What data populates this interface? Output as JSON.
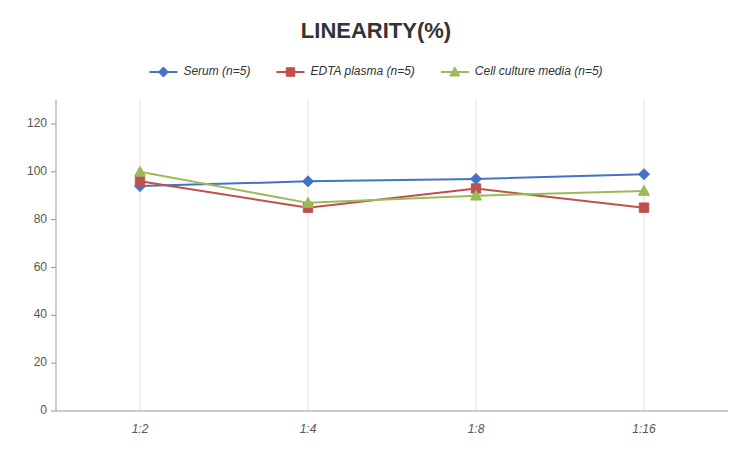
{
  "chart_data": {
    "type": "line",
    "title": "LINEARITY(%)",
    "categories": [
      "1:2",
      "1:4",
      "1:8",
      "1:16"
    ],
    "series": [
      {
        "name": "Serum (n=5)",
        "color": "#4472C4",
        "marker": "diamond",
        "line_style": "solid",
        "values": [
          94,
          96,
          97,
          99
        ]
      },
      {
        "name": "EDTA plasma (n=5)",
        "color": "#C0504D",
        "marker": "square",
        "line_style": "solid",
        "values": [
          96,
          85,
          93,
          85
        ]
      },
      {
        "name": "Cell culture media (n=5)",
        "color": "#9BBB59",
        "marker": "triangle",
        "line_style": "solid",
        "values": [
          100,
          87,
          90,
          92
        ]
      }
    ],
    "ylim": [
      0,
      130
    ],
    "yticks": [
      0,
      20,
      40,
      60,
      80,
      100,
      120
    ],
    "grid": "x",
    "legend": "top"
  }
}
